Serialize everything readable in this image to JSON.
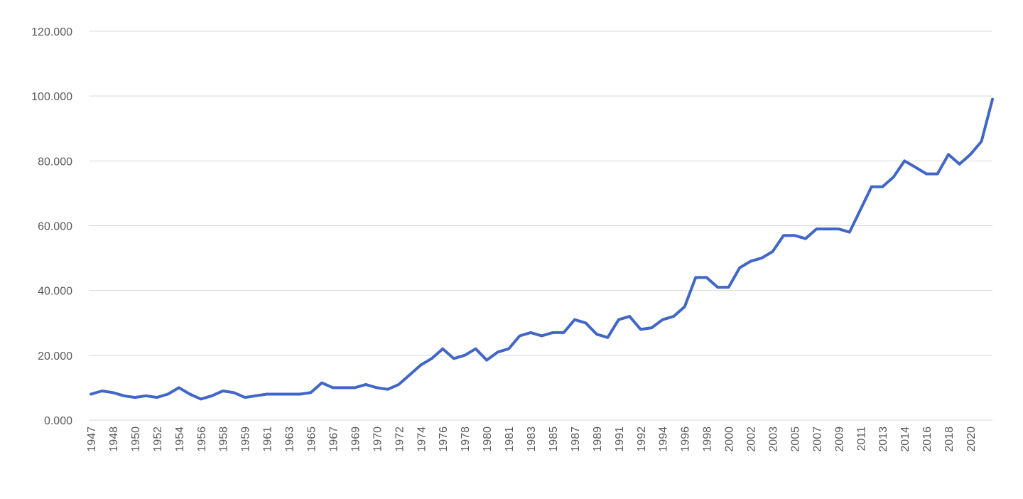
{
  "chart_data": {
    "type": "line",
    "categories": [
      "1947",
      null,
      "1948",
      null,
      "1950",
      null,
      "1952",
      null,
      "1954",
      null,
      "1956",
      null,
      "1958",
      null,
      "1959",
      null,
      "1961",
      null,
      "1963",
      null,
      "1965",
      null,
      "1967",
      null,
      "1969",
      null,
      "1970",
      null,
      "1972",
      null,
      "1974",
      null,
      "1976",
      null,
      "1978",
      null,
      "1980",
      null,
      "1981",
      null,
      "1983",
      null,
      "1985",
      null,
      "1987",
      null,
      "1989",
      null,
      "1991",
      null,
      "1992",
      null,
      "1994",
      null,
      "1996",
      null,
      "1998",
      null,
      "2000",
      null,
      "2002",
      null,
      "2003",
      null,
      "2005",
      null,
      "2007",
      null,
      "2009",
      null,
      "2011",
      null,
      "2013",
      null,
      "2014",
      null,
      "2016",
      null,
      "2018",
      null,
      "2020",
      null,
      null
    ],
    "values": [
      8,
      9,
      8.5,
      7.5,
      7,
      7.5,
      7,
      8,
      10,
      8,
      6.5,
      7.5,
      9,
      8.5,
      7,
      7.5,
      8,
      8,
      8,
      8,
      8.5,
      11.5,
      10,
      10,
      10,
      11,
      10,
      9.5,
      11,
      14,
      17,
      19,
      22,
      19,
      20,
      22,
      18.5,
      21,
      22,
      26,
      27,
      26,
      27,
      27,
      31,
      30,
      26.5,
      25.5,
      31,
      32,
      28,
      28.5,
      31,
      32,
      35,
      44,
      44,
      41,
      41,
      47,
      49,
      50,
      52,
      57,
      57,
      56,
      59,
      59,
      59,
      58,
      65,
      72,
      72,
      75,
      80,
      78,
      76,
      76,
      82,
      79,
      82,
      86,
      99
    ],
    "color": "#4066c8",
    "ylim": [
      0,
      120
    ],
    "yticks": [
      {
        "value": 0,
        "label": "0.000"
      },
      {
        "value": 20,
        "label": "20.000"
      },
      {
        "value": 40,
        "label": "40.000"
      },
      {
        "value": 60,
        "label": "60.000"
      },
      {
        "value": 80,
        "label": "80.000"
      },
      {
        "value": 100,
        "label": "100.000"
      },
      {
        "value": 120,
        "label": "120.000"
      }
    ],
    "grid": true
  }
}
